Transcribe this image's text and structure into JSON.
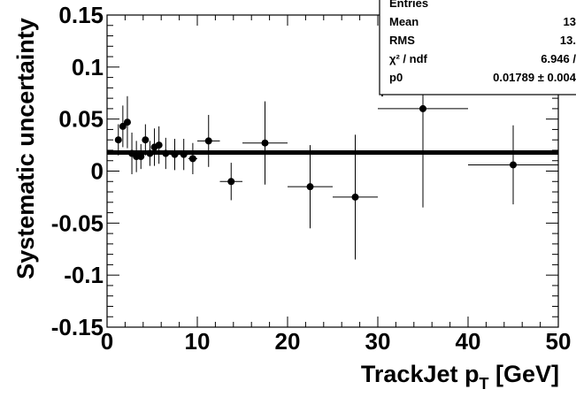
{
  "chart_data": {
    "type": "scatter",
    "title": "",
    "xlabel_main": "TrackJet p",
    "xlabel_sub": "T",
    "xlabel_unit": " [GeV]",
    "ylabel": "Systematic uncertainty",
    "xlim": [
      0,
      50
    ],
    "ylim": [
      -0.15,
      0.15
    ],
    "x_ticks": [
      "0",
      "10",
      "20",
      "30",
      "40",
      "50"
    ],
    "y_ticks": [
      "0.15",
      "0.1",
      "0.05",
      "0",
      "-0.05",
      "-0.1",
      "-0.15"
    ],
    "grid": false,
    "fit_line": {
      "value": 0.01789,
      "x_range": [
        0,
        50
      ]
    },
    "points": [
      {
        "x": 1.25,
        "y": 0.03,
        "xerr": 0.25,
        "yerr": 0.015
      },
      {
        "x": 1.75,
        "y": 0.043,
        "xerr": 0.25,
        "yerr": 0.02
      },
      {
        "x": 2.25,
        "y": 0.047,
        "xerr": 0.25,
        "yerr": 0.025
      },
      {
        "x": 2.75,
        "y": 0.017,
        "xerr": 0.25,
        "yerr": 0.02
      },
      {
        "x": 3.25,
        "y": 0.014,
        "xerr": 0.25,
        "yerr": 0.015
      },
      {
        "x": 3.75,
        "y": 0.014,
        "xerr": 0.25,
        "yerr": 0.012
      },
      {
        "x": 4.25,
        "y": 0.03,
        "xerr": 0.25,
        "yerr": 0.015
      },
      {
        "x": 4.75,
        "y": 0.017,
        "xerr": 0.25,
        "yerr": 0.012
      },
      {
        "x": 5.25,
        "y": 0.023,
        "xerr": 0.25,
        "yerr": 0.018
      },
      {
        "x": 5.75,
        "y": 0.025,
        "xerr": 0.25,
        "yerr": 0.018
      },
      {
        "x": 6.5,
        "y": 0.017,
        "xerr": 0.5,
        "yerr": 0.015
      },
      {
        "x": 7.5,
        "y": 0.016,
        "xerr": 0.5,
        "yerr": 0.015
      },
      {
        "x": 8.5,
        "y": 0.016,
        "xerr": 0.5,
        "yerr": 0.015
      },
      {
        "x": 9.5,
        "y": 0.012,
        "xerr": 0.5,
        "yerr": 0.015
      },
      {
        "x": 11.25,
        "y": 0.029,
        "xerr": 1.25,
        "yerr": 0.025
      },
      {
        "x": 13.75,
        "y": -0.01,
        "xerr": 1.25,
        "yerr": 0.018
      },
      {
        "x": 17.5,
        "y": 0.027,
        "xerr": 2.5,
        "yerr": 0.04
      },
      {
        "x": 22.5,
        "y": -0.015,
        "xerr": 2.5,
        "yerr": 0.04
      },
      {
        "x": 27.5,
        "y": -0.025,
        "xerr": 2.5,
        "yerr": 0.06
      },
      {
        "x": 35.0,
        "y": 0.06,
        "xerr": 5.0,
        "yerr": 0.095
      },
      {
        "x": 45.0,
        "y": 0.006,
        "xerr": 5.0,
        "yerr": 0.038
      }
    ],
    "stats_box": {
      "rows": [
        {
          "label": "Entries",
          "value": ""
        },
        {
          "label": "Mean",
          "value": "13"
        },
        {
          "label": "RMS",
          "value": "13."
        },
        {
          "label": "χ² / ndf",
          "value": "6.946 /"
        },
        {
          "label": "p0",
          "value": "0.01789 ± 0.004"
        }
      ]
    }
  }
}
